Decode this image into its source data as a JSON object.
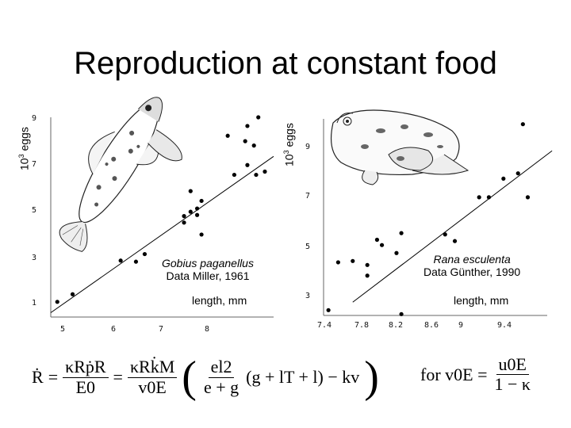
{
  "title": "Reproduction at constant food",
  "left_ylabel_base": "10",
  "left_ylabel_exp": "3",
  "left_ylabel_unit": " eggs",
  "right_ylabel_base": "10",
  "right_ylabel_exp": "3",
  "right_ylabel_unit": " eggs",
  "left_annotation": {
    "species": "Gobius paganellus",
    "source": "Data Miller, 1961",
    "xlabel": "length, mm"
  },
  "right_annotation": {
    "species": "Rana esculenta",
    "source": "Data Günther, 1990",
    "xlabel": "length, mm"
  },
  "formula": {
    "lhs": "Ṙ",
    "frac1_num": "κRṗR",
    "frac1_den": "E0",
    "frac2_num": "κRk̇M",
    "frac2_den": "v0E",
    "inner_num": "el2",
    "inner_den": "e + g",
    "inner_rest": "(g + lT + l) − kv",
    "condition": "for v0E =",
    "cond_num": "u0E",
    "cond_den": "1 − κ"
  },
  "chart_data": [
    {
      "type": "scatter",
      "ylabel": "10^3 eggs",
      "xlabel": "length, mm",
      "xticks": [
        "5",
        "6",
        "7",
        "8"
      ],
      "yticks": [
        "1",
        "3",
        "5",
        "7",
        "9"
      ],
      "xlim": [
        4.7,
        9.8
      ],
      "ylim": [
        0.2,
        9.4
      ],
      "points": [
        [
          4.85,
          0.9
        ],
        [
          5.2,
          1.25
        ],
        [
          6.3,
          2.8
        ],
        [
          6.65,
          2.75
        ],
        [
          6.85,
          3.1
        ],
        [
          7.75,
          4.55
        ],
        [
          7.75,
          4.85
        ],
        [
          7.9,
          5.05
        ],
        [
          8.05,
          5.2
        ],
        [
          8.05,
          4.9
        ],
        [
          7.9,
          6.0
        ],
        [
          8.15,
          5.55
        ],
        [
          8.15,
          4.0
        ],
        [
          8.9,
          6.75
        ],
        [
          9.4,
          6.75
        ],
        [
          9.2,
          7.2
        ],
        [
          9.6,
          6.9
        ],
        [
          8.75,
          8.55
        ],
        [
          9.15,
          8.3
        ],
        [
          9.2,
          9.0
        ],
        [
          9.45,
          9.4
        ],
        [
          9.35,
          8.1
        ]
      ],
      "fit_line": [
        [
          4.7,
          0.4
        ],
        [
          9.8,
          7.6
        ]
      ],
      "image": "goby fish illustration"
    },
    {
      "type": "scatter",
      "ylabel": "10^3 eggs",
      "xlabel": "length, mm",
      "xticks": [
        "7.4",
        "7.8",
        "8.2",
        "8.6",
        "9",
        "9.4"
      ],
      "yticks": [
        "3",
        "5",
        "7",
        "9"
      ],
      "xlim": [
        7.4,
        9.7
      ],
      "ylim": [
        2.8,
        10.2
      ],
      "points": [
        [
          7.45,
          3.0
        ],
        [
          7.55,
          4.8
        ],
        [
          7.7,
          4.85
        ],
        [
          7.85,
          4.7
        ],
        [
          7.85,
          4.3
        ],
        [
          7.95,
          5.65
        ],
        [
          8.0,
          5.45
        ],
        [
          8.15,
          5.15
        ],
        [
          8.2,
          5.9
        ],
        [
          8.65,
          5.85
        ],
        [
          8.75,
          5.6
        ],
        [
          9.0,
          7.25
        ],
        [
          9.1,
          7.25
        ],
        [
          9.25,
          7.95
        ],
        [
          9.5,
          7.25
        ],
        [
          9.4,
          8.15
        ],
        [
          9.45,
          10.0
        ],
        [
          8.2,
          2.85
        ]
      ],
      "fit_line": [
        [
          7.7,
          3.3
        ],
        [
          9.75,
          9.0
        ]
      ],
      "image": "frog illustration"
    }
  ]
}
